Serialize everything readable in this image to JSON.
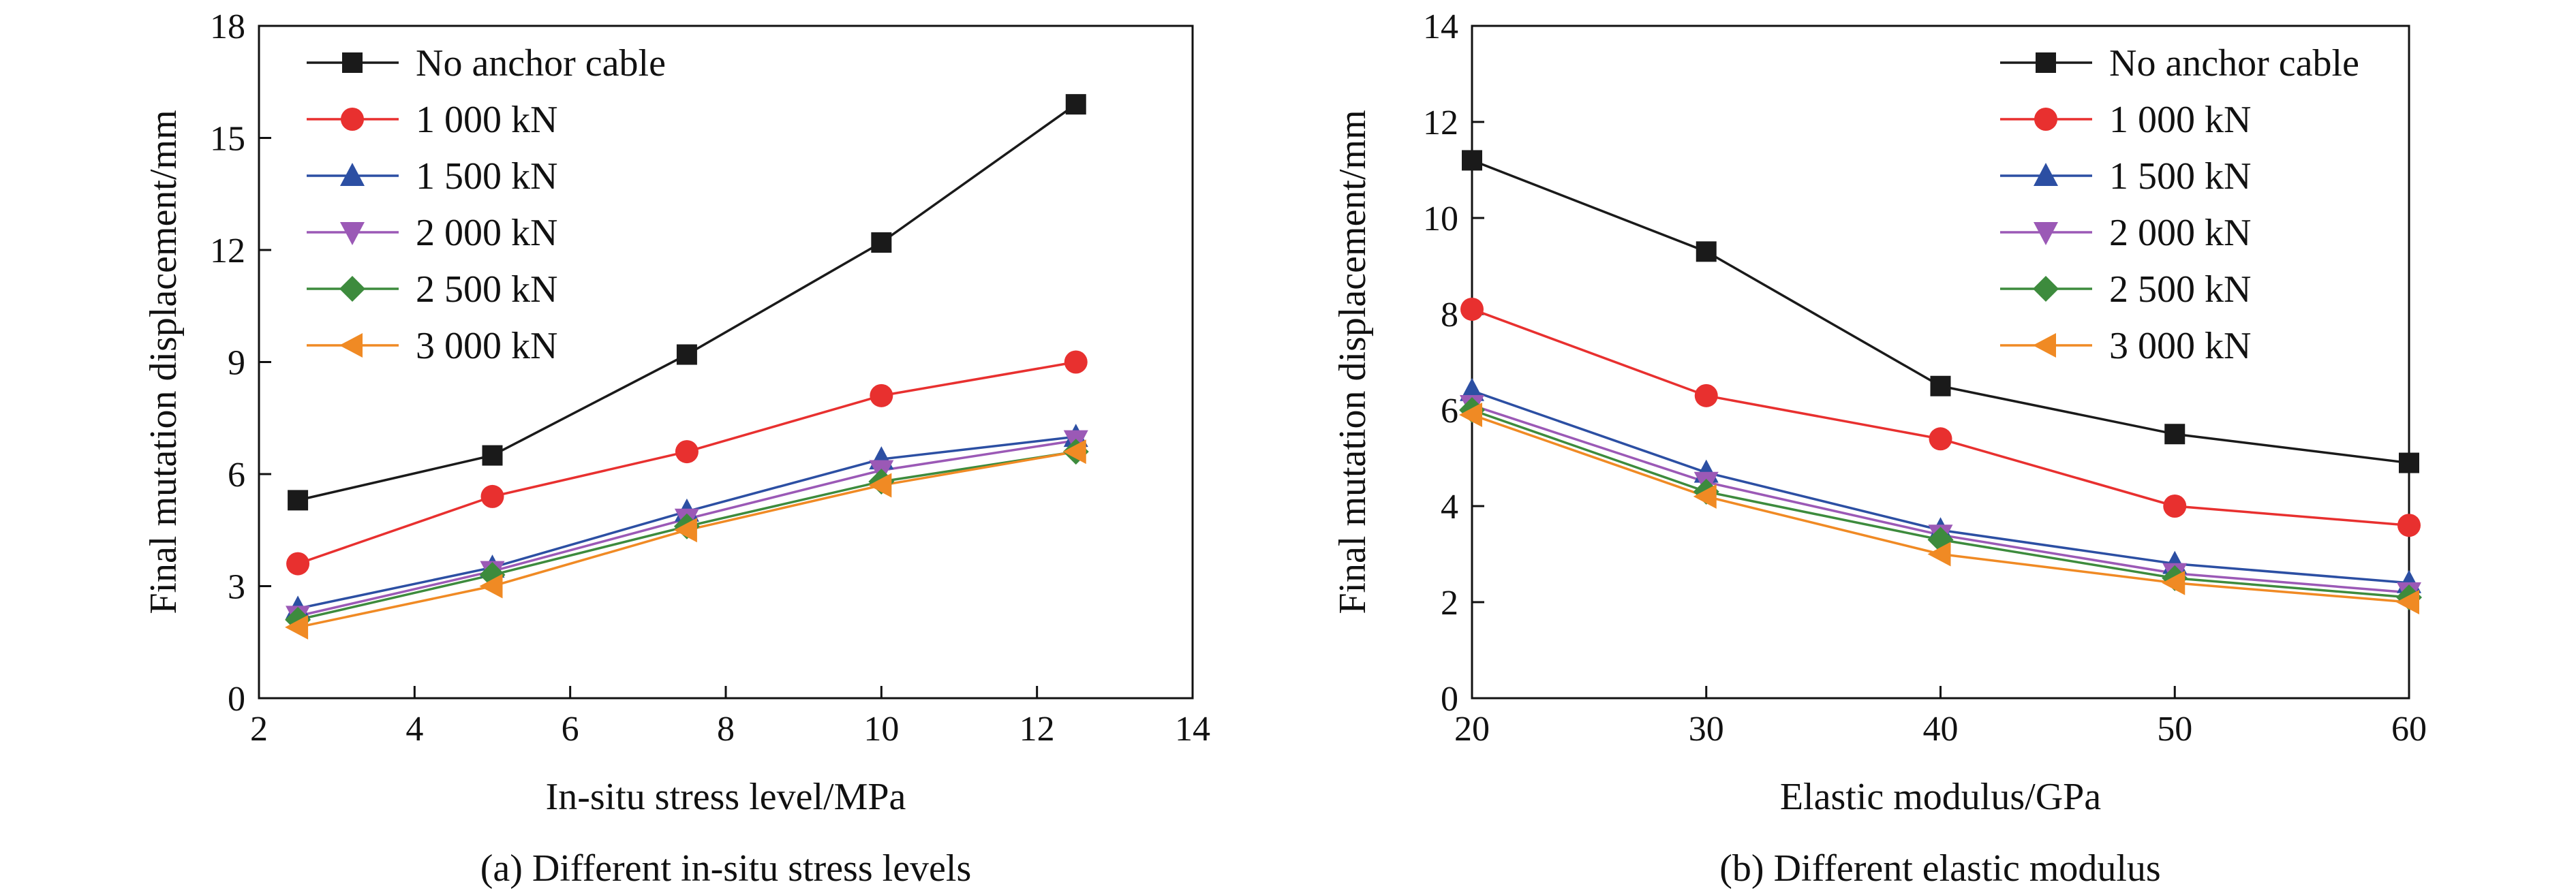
{
  "chart_data": [
    {
      "type": "line",
      "caption": "(a) Different in-situ stress levels",
      "xlabel": "In-situ stress level/MPa",
      "ylabel": "Final mutation displacement/mm",
      "xlim": [
        2,
        14
      ],
      "ylim": [
        0,
        18
      ],
      "xticks": [
        2,
        4,
        6,
        8,
        10,
        12,
        14
      ],
      "yticks": [
        0,
        3,
        6,
        9,
        12,
        15,
        18
      ],
      "legend_position": "top-left",
      "x": [
        2.5,
        5,
        7.5,
        10,
        12.5
      ],
      "series": [
        {
          "name": "No anchor cable",
          "color": "#1a1a1a",
          "marker": "square",
          "values": [
            5.3,
            6.5,
            9.2,
            12.2,
            15.9
          ]
        },
        {
          "name": "1 000 kN",
          "color": "#e8302f",
          "marker": "circle",
          "values": [
            3.6,
            5.4,
            6.6,
            8.1,
            9.0
          ]
        },
        {
          "name": "1 500 kN",
          "color": "#2c4fa3",
          "marker": "triangle-up",
          "values": [
            2.4,
            3.5,
            5.0,
            6.4,
            7.0
          ]
        },
        {
          "name": "2 000 kN",
          "color": "#9b59b6",
          "marker": "triangle-down",
          "values": [
            2.2,
            3.4,
            4.8,
            6.1,
            6.9
          ]
        },
        {
          "name": "2 500 kN",
          "color": "#3d8b3d",
          "marker": "diamond",
          "values": [
            2.1,
            3.3,
            4.6,
            5.8,
            6.6
          ]
        },
        {
          "name": "3 000 kN",
          "color": "#f08a24",
          "marker": "triangle-left",
          "values": [
            1.9,
            3.0,
            4.5,
            5.7,
            6.6
          ]
        }
      ]
    },
    {
      "type": "line",
      "caption": "(b) Different elastic modulus",
      "xlabel": "Elastic modulus/GPa",
      "ylabel": "Final mutation displacement/mm",
      "xlim": [
        20,
        60
      ],
      "ylim": [
        0,
        14
      ],
      "xticks": [
        20,
        30,
        40,
        50,
        60
      ],
      "yticks": [
        0,
        2,
        4,
        6,
        8,
        10,
        12,
        14
      ],
      "legend_position": "top-right",
      "x": [
        20,
        30,
        40,
        50,
        60
      ],
      "series": [
        {
          "name": "No anchor cable",
          "color": "#1a1a1a",
          "marker": "square",
          "values": [
            11.2,
            9.3,
            6.5,
            5.5,
            4.9
          ]
        },
        {
          "name": "1 000 kN",
          "color": "#e8302f",
          "marker": "circle",
          "values": [
            8.1,
            6.3,
            5.4,
            4.0,
            3.6
          ]
        },
        {
          "name": "1 500 kN",
          "color": "#2c4fa3",
          "marker": "triangle-up",
          "values": [
            6.4,
            4.7,
            3.5,
            2.8,
            2.4
          ]
        },
        {
          "name": "2 000 kN",
          "color": "#9b59b6",
          "marker": "triangle-down",
          "values": [
            6.1,
            4.5,
            3.4,
            2.6,
            2.2
          ]
        },
        {
          "name": "2 500 kN",
          "color": "#3d8b3d",
          "marker": "diamond",
          "values": [
            6.0,
            4.3,
            3.3,
            2.5,
            2.1
          ]
        },
        {
          "name": "3 000 kN",
          "color": "#f08a24",
          "marker": "triangle-left",
          "values": [
            5.9,
            4.2,
            3.0,
            2.4,
            2.0
          ]
        }
      ]
    }
  ]
}
